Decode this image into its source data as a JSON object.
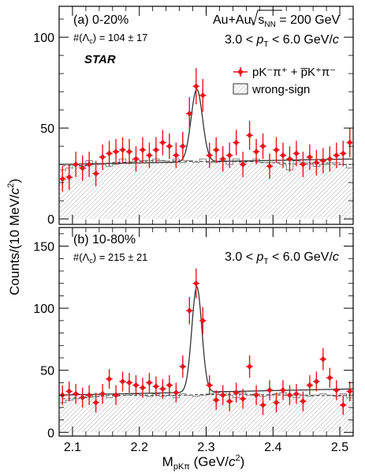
{
  "figure": {
    "ylabel_prefix": "Counts/(10 MeV/",
    "ylabel_c": "c",
    "ylabel_sup": "2",
    "ylabel_suffix": ")",
    "xlabel_m": "M",
    "xlabel_sub": "pKπ",
    "xlabel_units_prefix": " (GeV/",
    "xlabel_c": "c",
    "xlabel_sup": "2",
    "xlabel_suffix": ")",
    "colors": {
      "signal": "#e8141c",
      "fit": "#333333",
      "axis": "#000000",
      "hatch": "#9a9a9a"
    }
  },
  "chart_data": [
    {
      "type": "scatter",
      "panel_label": "(a)  0-20%",
      "yield_text": "#(Λ",
      "yield_sub": "c",
      "yield_value": ") = 104 ± 17",
      "collision_text": "Au+Au, ",
      "sqrt_label": "s",
      "sqrt_sub": "NN",
      "energy_text": " = 200 GeV",
      "pt_range_prefix": "3.0 < ",
      "pt_p": "p",
      "pt_sub": "T",
      "pt_range_suffix": " < 6.0 GeV/",
      "pt_c": "c",
      "experiment": "STAR",
      "legend": {
        "signal_label": "pK⁻π⁺ + p̅K⁺π⁻",
        "background_label": "wrong-sign",
        "placement": "top-right"
      },
      "xlim": [
        2.08,
        2.52
      ],
      "ylim": [
        -3,
        117
      ],
      "yticks": [
        0,
        50,
        100
      ],
      "x": [
        2.085,
        2.095,
        2.105,
        2.115,
        2.125,
        2.135,
        2.145,
        2.155,
        2.165,
        2.175,
        2.185,
        2.195,
        2.205,
        2.215,
        2.225,
        2.235,
        2.245,
        2.255,
        2.265,
        2.275,
        2.285,
        2.295,
        2.305,
        2.315,
        2.325,
        2.335,
        2.345,
        2.355,
        2.365,
        2.375,
        2.385,
        2.395,
        2.405,
        2.415,
        2.425,
        2.435,
        2.445,
        2.455,
        2.465,
        2.475,
        2.485,
        2.495,
        2.505,
        2.515
      ],
      "series": [
        {
          "values": [
            22,
            23,
            30,
            28,
            30,
            25,
            34,
            36,
            37,
            38,
            37,
            33,
            38,
            35,
            38,
            42,
            40,
            35,
            40,
            58,
            73,
            68,
            35,
            38,
            33,
            35,
            42,
            30,
            46,
            37,
            40,
            29,
            38,
            35,
            33,
            36,
            30,
            34,
            31,
            32,
            33,
            35,
            36,
            42
          ],
          "errors": [
            7,
            7,
            7,
            7,
            7,
            7,
            7,
            7,
            7,
            7,
            7,
            7,
            7,
            7,
            7,
            7,
            7,
            7,
            8,
            9,
            10,
            9,
            7,
            7,
            7,
            7,
            7,
            7,
            8,
            7,
            7,
            7,
            7,
            7,
            7,
            7,
            7,
            7,
            7,
            7,
            7,
            7,
            7,
            8
          ]
        },
        {
          "values": [
            27,
            28,
            30,
            29,
            32,
            30,
            30,
            29,
            30,
            33,
            31,
            33,
            32,
            31,
            33,
            32,
            31,
            33,
            31,
            32,
            31,
            33,
            31,
            31,
            32,
            30,
            33,
            31,
            32,
            33,
            31,
            31,
            31,
            30,
            27,
            32,
            31,
            31,
            29,
            30,
            31,
            31,
            30,
            28
          ]
        }
      ],
      "fit": {
        "baseline_start": 30,
        "baseline_end": 33,
        "peak_mean": 2.286,
        "peak_sigma": 0.0085,
        "peak_amplitude": 40
      }
    },
    {
      "type": "scatter",
      "panel_label": "(b)  10-80%",
      "yield_text": "#(Λ",
      "yield_sub": "c",
      "yield_value": ") = 215 ± 21",
      "pt_range_prefix": "3.0 < ",
      "pt_p": "p",
      "pt_sub": "T",
      "pt_range_suffix": " < 6.0 GeV/",
      "pt_c": "c",
      "xlim": [
        2.08,
        2.52
      ],
      "ylim": [
        -3,
        165
      ],
      "yticks": [
        0,
        50,
        100,
        150
      ],
      "xticks": [
        2.1,
        2.2,
        2.3,
        2.4,
        2.5
      ],
      "x": [
        2.085,
        2.095,
        2.105,
        2.115,
        2.125,
        2.135,
        2.145,
        2.155,
        2.165,
        2.175,
        2.185,
        2.195,
        2.205,
        2.215,
        2.225,
        2.235,
        2.245,
        2.255,
        2.265,
        2.275,
        2.285,
        2.295,
        2.305,
        2.315,
        2.325,
        2.335,
        2.345,
        2.355,
        2.365,
        2.375,
        2.385,
        2.395,
        2.405,
        2.415,
        2.425,
        2.435,
        2.445,
        2.455,
        2.465,
        2.475,
        2.485,
        2.495,
        2.505,
        2.515
      ],
      "series": [
        {
          "values": [
            30,
            33,
            31,
            28,
            30,
            24,
            31,
            43,
            30,
            41,
            40,
            38,
            36,
            40,
            37,
            35,
            38,
            32,
            53,
            98,
            120,
            90,
            38,
            26,
            30,
            25,
            32,
            27,
            53,
            30,
            22,
            34,
            24,
            34,
            30,
            31,
            25,
            38,
            41,
            59,
            44,
            34,
            22,
            33
          ],
          "errors": [
            8,
            8,
            8,
            8,
            8,
            8,
            8,
            8,
            8,
            8,
            8,
            8,
            8,
            8,
            8,
            8,
            8,
            8,
            9,
            11,
            12,
            11,
            8,
            8,
            8,
            8,
            8,
            8,
            9,
            8,
            8,
            8,
            8,
            8,
            8,
            8,
            8,
            8,
            8,
            9,
            8,
            8,
            8,
            8
          ]
        },
        {
          "values": [
            24,
            26,
            27,
            28,
            30,
            29,
            31,
            28,
            29,
            31,
            30,
            31,
            30,
            29,
            31,
            29,
            30,
            28,
            31,
            30,
            29,
            30,
            31,
            32,
            33,
            30,
            28,
            32,
            30,
            31,
            29,
            30,
            31,
            32,
            30,
            28,
            30,
            29,
            30,
            31,
            30,
            29,
            31,
            28
          ]
        }
      ],
      "fit": {
        "baseline_start": 30,
        "baseline_end": 35,
        "peak_mean": 2.286,
        "peak_sigma": 0.0075,
        "peak_amplitude": 85
      }
    }
  ]
}
